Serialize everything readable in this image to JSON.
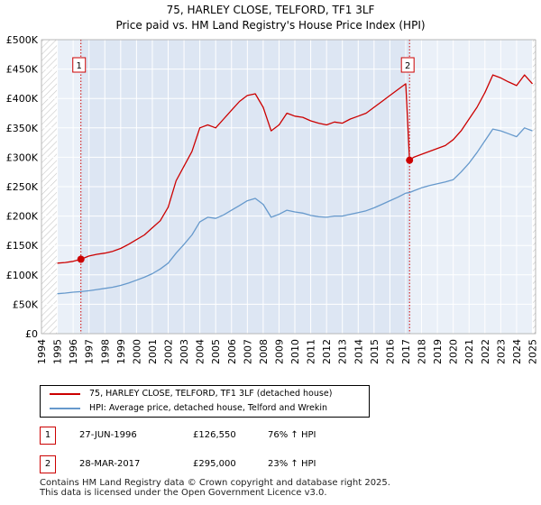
{
  "title": "75, HARLEY CLOSE, TELFORD, TF1 3LF",
  "subtitle": "Price paid vs. HM Land Registry's House Price Index (HPI)",
  "colors": {
    "property": "#cc0000",
    "hpi": "#6699cc",
    "shade": "#dde6f3",
    "grid": "#ffffff",
    "marker": "#cc0000"
  },
  "chart_data": {
    "type": "line",
    "title": "75, HARLEY CLOSE, TELFORD, TF1 3LF — Price paid vs. HM Land Registry's House Price Index (HPI)",
    "xlabel": "",
    "ylabel": "",
    "xlim": [
      1994,
      2025.2
    ],
    "ylim": [
      0,
      500000
    ],
    "grid": true,
    "x_ticks": [
      "1994",
      "1995",
      "1996",
      "1997",
      "1998",
      "1999",
      "2000",
      "2001",
      "2002",
      "2003",
      "2004",
      "2005",
      "2006",
      "2007",
      "2008",
      "2009",
      "2010",
      "2011",
      "2012",
      "2013",
      "2014",
      "2015",
      "2016",
      "2017",
      "2018",
      "2019",
      "2020",
      "2021",
      "2022",
      "2023",
      "2024",
      "2025"
    ],
    "y_ticks": [
      "£0",
      "£50K",
      "£100K",
      "£150K",
      "£200K",
      "£250K",
      "£300K",
      "£350K",
      "£400K",
      "£450K",
      "£500K"
    ],
    "y_tick_values": [
      0,
      50000,
      100000,
      150000,
      200000,
      250000,
      300000,
      350000,
      400000,
      450000,
      500000
    ],
    "x": [
      1995.0,
      1995.5,
      1996.0,
      1996.49,
      1997.0,
      1997.5,
      1998.0,
      1998.5,
      1999.0,
      1999.5,
      2000.0,
      2000.5,
      2001.0,
      2001.5,
      2002.0,
      2002.5,
      2003.0,
      2003.5,
      2004.0,
      2004.5,
      2005.0,
      2005.5,
      2006.0,
      2006.5,
      2007.0,
      2007.5,
      2008.0,
      2008.5,
      2009.0,
      2009.5,
      2010.0,
      2010.5,
      2011.0,
      2011.5,
      2012.0,
      2012.5,
      2013.0,
      2013.5,
      2014.0,
      2014.5,
      2015.0,
      2015.5,
      2016.0,
      2016.5,
      2017.0,
      2017.24,
      2017.5,
      2018.0,
      2018.5,
      2019.0,
      2019.5,
      2020.0,
      2020.5,
      2021.0,
      2021.5,
      2022.0,
      2022.5,
      2023.0,
      2023.5,
      2024.0,
      2024.5,
      2025.0
    ],
    "series": [
      {
        "name": "75, HARLEY CLOSE, TELFORD, TF1 3LF (detached house)",
        "values": [
          120000,
          121000,
          123000,
          126550,
          132000,
          135000,
          137000,
          140000,
          145000,
          152000,
          160000,
          168000,
          180000,
          192000,
          215000,
          260000,
          285000,
          310000,
          350000,
          355000,
          350000,
          365000,
          380000,
          395000,
          405000,
          408000,
          385000,
          345000,
          355000,
          375000,
          370000,
          368000,
          362000,
          358000,
          355000,
          360000,
          358000,
          365000,
          370000,
          375000,
          385000,
          395000,
          405000,
          415000,
          425000,
          295000,
          300000,
          305000,
          310000,
          315000,
          320000,
          330000,
          345000,
          365000,
          385000,
          410000,
          440000,
          435000,
          428000,
          422000,
          440000,
          425000
        ]
      },
      {
        "name": "HPI: Average price, detached house, Telford and Wrekin",
        "values": [
          68000,
          69000,
          70500,
          71500,
          73000,
          75000,
          77000,
          79000,
          82000,
          86000,
          91000,
          96000,
          102000,
          110000,
          120000,
          137000,
          152000,
          168000,
          190000,
          198000,
          196000,
          202000,
          210000,
          218000,
          226000,
          230000,
          220000,
          198000,
          203000,
          210000,
          207000,
          205000,
          201000,
          199000,
          198000,
          200000,
          200000,
          203000,
          206000,
          209000,
          214000,
          220000,
          226000,
          232000,
          239000,
          240000,
          243000,
          248000,
          252000,
          255000,
          258000,
          262000,
          275000,
          290000,
          308000,
          328000,
          348000,
          345000,
          340000,
          335000,
          350000,
          345000
        ]
      }
    ],
    "sale_markers": [
      {
        "label": "1",
        "x": 1996.49,
        "y": 126550
      },
      {
        "label": "2",
        "x": 2017.24,
        "y": 295000
      }
    ]
  },
  "legend": {
    "property": "75, HARLEY CLOSE, TELFORD, TF1 3LF (detached house)",
    "hpi": "HPI: Average price, detached house, Telford and Wrekin"
  },
  "transactions": [
    {
      "label": "1",
      "date": "27-JUN-1996",
      "price": "£126,550",
      "hpi_change": "76% ↑ HPI"
    },
    {
      "label": "2",
      "date": "28-MAR-2017",
      "price": "£295,000",
      "hpi_change": "23% ↑ HPI"
    }
  ],
  "footer": {
    "line1": "Contains HM Land Registry data © Crown copyright and database right 2025.",
    "line2": "This data is licensed under the Open Government Licence v3.0."
  }
}
